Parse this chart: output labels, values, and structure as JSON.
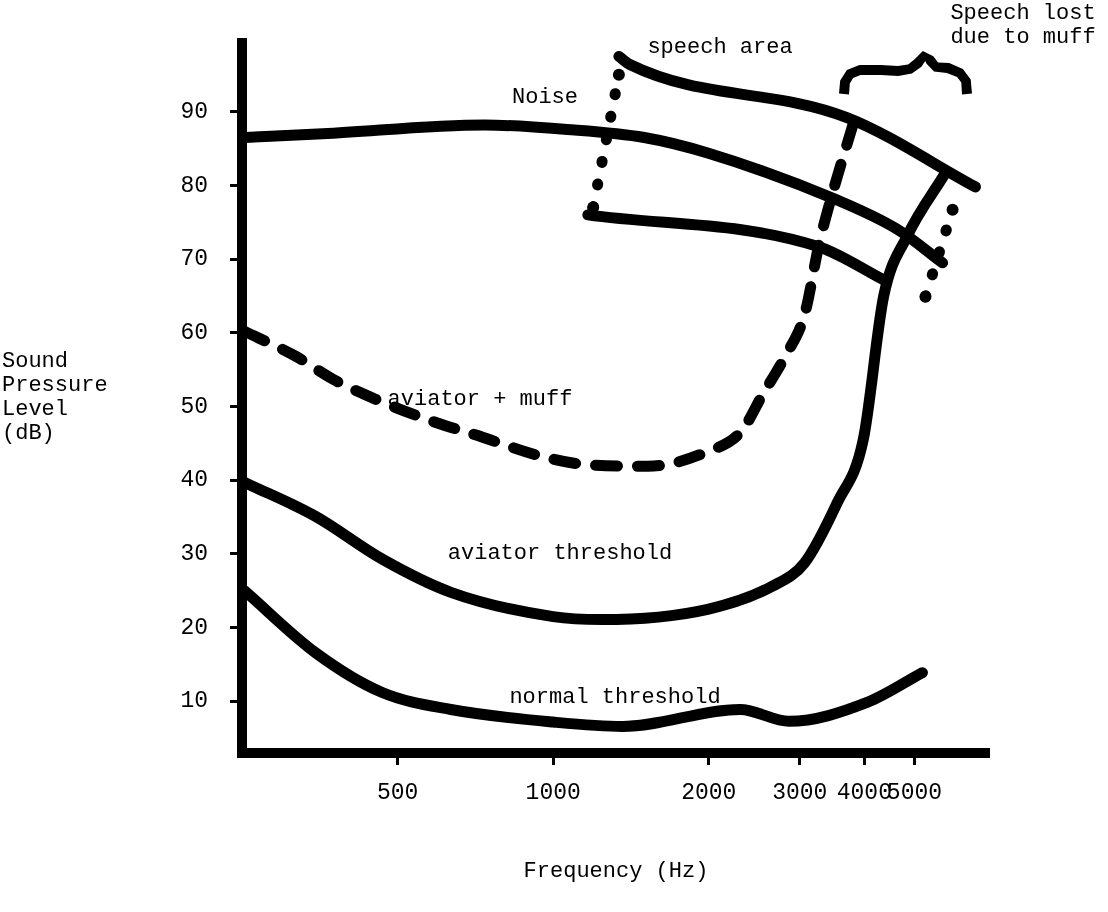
{
  "chart_data": {
    "type": "line",
    "xlabel": "Frequency (Hz)",
    "ylabel": "Sound Pressure Level (dB)",
    "log": "x",
    "xlim": [
      250,
      7000
    ],
    "xticks": [
      500,
      1000,
      2000,
      3000,
      4000,
      5000
    ],
    "ylim": [
      3,
      100
    ],
    "yticks": [
      10,
      20,
      30,
      40,
      50,
      60,
      70,
      80,
      90
    ],
    "grid": false,
    "legend": false,
    "series": [
      {
        "color": "#000000",
        "line_style": "solid",
        "x": [
          253,
          358,
          737,
          1063,
          1500,
          1990,
          3547,
          4643,
          5666
        ],
        "values": [
          86.5,
          87,
          88.2,
          87.6,
          86.5,
          84.4,
          78,
          74,
          69.5
        ]
      },
      {
        "color": "#000000",
        "line_style": "solid",
        "x": [
          1340,
          1407,
          3702,
          6560
        ],
        "values": [
          97.5,
          96.4,
          89.2,
          79.8
        ]
      },
      {
        "color": "#000000",
        "line_style": "solid",
        "x": [
          1167,
          3254,
          4411
        ],
        "values": [
          76,
          71.7,
          67
        ]
      },
      {
        "color": "#000000",
        "line_style": "dotted",
        "marker": "circle",
        "x": [
          1195,
          1340
        ],
        "values": [
          77,
          95
        ]
      },
      {
        "color": "#000000",
        "line_style": "dotted",
        "marker": "circle",
        "x": [
          5250,
          5925
        ],
        "values": [
          64.9,
          76.7
        ]
      },
      {
        "color": "#000000",
        "line_style": "dashed",
        "x": [
          253,
          318,
          375,
          453,
          595,
          704,
          955,
          1167,
          1524,
          1990,
          2310,
          2541,
          2810,
          3065,
          3268,
          3440,
          3800
        ],
        "values": [
          60.2,
          56.8,
          53.7,
          51,
          47.8,
          46.2,
          43.2,
          42.1,
          41.9,
          43.9,
          46.6,
          51.6,
          56.8,
          62.5,
          72,
          78,
          88.2
        ]
      },
      {
        "color": "#000000",
        "line_style": "solid",
        "x": [
          253,
          347,
          467,
          634,
          1000,
          1240,
          1990,
          2650,
          3065,
          3547,
          3980,
          4360,
          4830,
          5740
        ],
        "values": [
          39.7,
          35.1,
          29.3,
          24.8,
          21.5,
          21.1,
          22.5,
          25.6,
          28.8,
          37,
          45.5,
          65,
          73,
          81.7
        ]
      },
      {
        "color": "#000000",
        "line_style": "solid",
        "x": [
          253,
          347,
          467,
          634,
          1000,
          1362,
          2300,
          2860,
          4060,
          5180
        ],
        "values": [
          25,
          16.6,
          11.2,
          8.9,
          7.2,
          6.6,
          8.9,
          7.3,
          9.9,
          13.9
        ]
      }
    ],
    "annotations": [
      "Noise",
      "speech area",
      "aviator + muff",
      "aviator threshold",
      "normal threshold",
      "Speech lost due to muff"
    ]
  }
}
